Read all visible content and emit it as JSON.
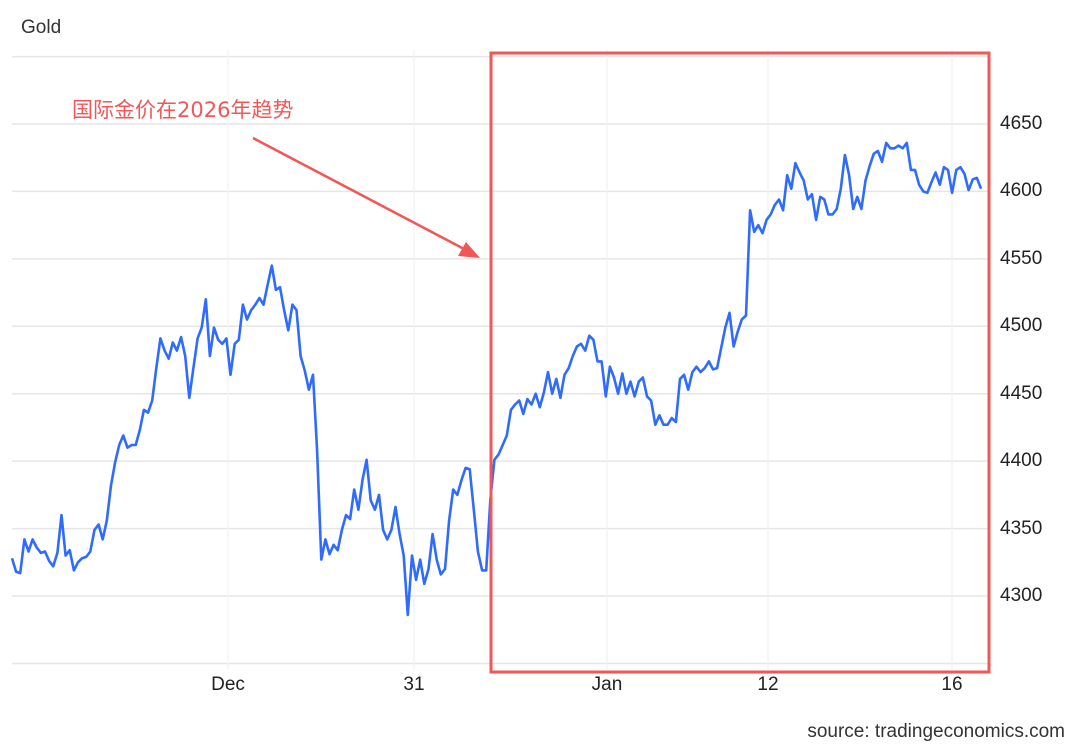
{
  "chart_data": {
    "type": "line",
    "title": "Gold",
    "xlabel": "",
    "ylabel": "",
    "ylim": [
      4250,
      4700
    ],
    "y_ticks": [
      "4650",
      "4600",
      "4550",
      "4500",
      "4450",
      "4400",
      "4350",
      "4300"
    ],
    "x_ticks": [
      "Dec",
      "31",
      "Jan",
      "12",
      "16"
    ],
    "grid": true,
    "series": [
      {
        "color": "#2f6bff",
        "values": [
          4328,
          4318,
          4317,
          4342,
          4333,
          4342,
          4336,
          4332,
          4333,
          4326,
          4322,
          4332,
          4360,
          4330,
          4334,
          4319,
          4325,
          4328,
          4329,
          4333,
          4349,
          4353,
          4342,
          4356,
          4382,
          4399,
          4412,
          4419,
          4410,
          4412,
          4412,
          4423,
          4438,
          4436,
          4445,
          4469,
          4491,
          4482,
          4476,
          4488,
          4482,
          4492,
          4478,
          4447,
          4469,
          4491,
          4499,
          4520,
          4478,
          4499,
          4490,
          4487,
          4491,
          4464,
          4487,
          4490,
          4516,
          4505,
          4512,
          4516,
          4521,
          4516,
          4531,
          4545,
          4527,
          4529,
          4512,
          4497,
          4516,
          4512,
          4478,
          4467,
          4453,
          4464,
          4408,
          4327,
          4342,
          4331,
          4338,
          4334,
          4349,
          4360,
          4357,
          4379,
          4364,
          4386,
          4401,
          4371,
          4364,
          4375,
          4349,
          4342,
          4349,
          4366,
          4346,
          4330,
          4286,
          4330,
          4312,
          4327,
          4309,
          4320,
          4346,
          4327,
          4316,
          4320,
          4356,
          4379,
          4375,
          4386,
          4395,
          4394,
          4364,
          4333,
          4319,
          4319,
          4371,
          4401,
          4405,
          4412,
          4419,
          4438,
          4442,
          4445,
          4435,
          4446,
          4442,
          4450,
          4440,
          4451,
          4466,
          4450,
          4461,
          4447,
          4464,
          4469,
          4478,
          4485,
          4487,
          4482,
          4493,
          4490,
          4474,
          4474,
          4448,
          4470,
          4462,
          4450,
          4465,
          4450,
          4459,
          4448,
          4459,
          4462,
          4448,
          4445,
          4427,
          4434,
          4427,
          4427,
          4432,
          4429,
          4461,
          4464,
          4453,
          4466,
          4470,
          4466,
          4469,
          4474,
          4468,
          4469,
          4484,
          4499,
          4510,
          4485,
          4496,
          4505,
          4508,
          4586,
          4570,
          4575,
          4569,
          4579,
          4583,
          4590,
          4594,
          4586,
          4612,
          4602,
          4621,
          4614,
          4608,
          4594,
          4598,
          4579,
          4596,
          4594,
          4583,
          4583,
          4587,
          4602,
          4627,
          4612,
          4587,
          4596,
          4587,
          4608,
          4619,
          4628,
          4630,
          4622,
          4636,
          4632,
          4632,
          4634,
          4632,
          4636,
          4616,
          4616,
          4605,
          4600,
          4599,
          4607,
          4614,
          4605,
          4618,
          4616,
          4599,
          4616,
          4618,
          4613,
          4601,
          4609,
          4610,
          4602
        ]
      }
    ],
    "annotation": {
      "text": "国际金价在2026年趋势",
      "color": "#f25757"
    },
    "highlight_box_color": "#f25757"
  },
  "source": "source: tradingeconomics.com"
}
